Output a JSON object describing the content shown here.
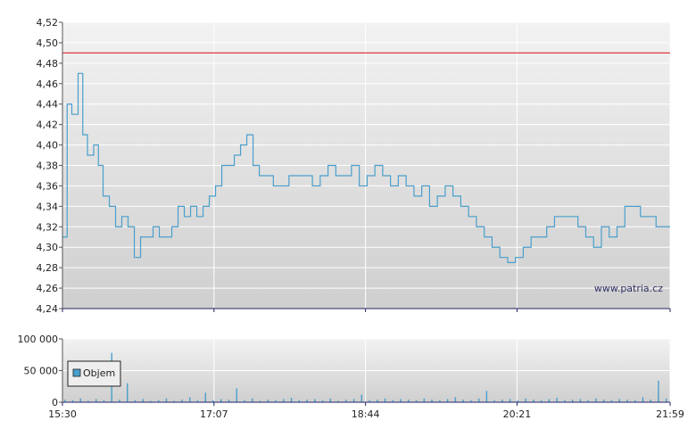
{
  "colors": {
    "price_line": "#4a9fcc",
    "reference_line": "#e03c3c",
    "volume_bar": "#4a9fcc",
    "grid": "#ffffff",
    "legend_swatch": "#4a9fcc"
  },
  "watermark": "www.patria.cz",
  "chart_data": [
    {
      "type": "line",
      "title": "",
      "xlabel": "",
      "ylabel": "",
      "x_ticks": [
        "15:30",
        "17:07",
        "18:44",
        "20:21",
        "21:59"
      ],
      "ylim": [
        4.24,
        4.52
      ],
      "y_ticks": [
        "4,52",
        "4,50",
        "4,48",
        "4,46",
        "4,44",
        "4,42",
        "4,40",
        "4,38",
        "4,36",
        "4,34",
        "4,32",
        "4,30",
        "4,28",
        "4,26",
        "4,24"
      ],
      "y_tick_values": [
        4.52,
        4.5,
        4.48,
        4.46,
        4.44,
        4.42,
        4.4,
        4.38,
        4.36,
        4.34,
        4.32,
        4.3,
        4.28,
        4.26,
        4.24
      ],
      "reference_level": 4.49,
      "grid": true,
      "series": [
        {
          "x": [
            "15:30",
            "15:33",
            "15:36",
            "15:40",
            "15:43",
            "15:46",
            "15:50",
            "15:53",
            "15:56",
            "16:00",
            "16:04",
            "16:08",
            "16:12",
            "16:16",
            "16:20",
            "16:24",
            "16:28",
            "16:32",
            "16:36",
            "16:40",
            "16:44",
            "16:48",
            "16:52",
            "16:56",
            "17:00",
            "17:04",
            "17:08",
            "17:12",
            "17:16",
            "17:20",
            "17:24",
            "17:28",
            "17:32",
            "17:36",
            "17:40",
            "17:45",
            "17:50",
            "17:55",
            "18:00",
            "18:05",
            "18:10",
            "18:15",
            "18:20",
            "18:25",
            "18:30",
            "18:35",
            "18:40",
            "18:45",
            "18:50",
            "18:55",
            "19:00",
            "19:05",
            "19:10",
            "19:15",
            "19:20",
            "19:25",
            "19:30",
            "19:35",
            "19:40",
            "19:45",
            "19:50",
            "19:55",
            "20:00",
            "20:05",
            "20:10",
            "20:15",
            "20:20",
            "20:25",
            "20:30",
            "20:35",
            "20:40",
            "20:45",
            "20:50",
            "20:55",
            "21:00",
            "21:05",
            "21:10",
            "21:15",
            "21:20",
            "21:25",
            "21:30",
            "21:35",
            "21:40",
            "21:45",
            "21:50",
            "21:55",
            "21:59"
          ],
          "y": [
            4.31,
            4.44,
            4.43,
            4.47,
            4.41,
            4.39,
            4.4,
            4.38,
            4.35,
            4.34,
            4.32,
            4.33,
            4.32,
            4.29,
            4.31,
            4.31,
            4.32,
            4.31,
            4.31,
            4.32,
            4.34,
            4.33,
            4.34,
            4.33,
            4.34,
            4.35,
            4.36,
            4.38,
            4.38,
            4.39,
            4.4,
            4.41,
            4.38,
            4.37,
            4.37,
            4.36,
            4.36,
            4.37,
            4.37,
            4.37,
            4.36,
            4.37,
            4.38,
            4.37,
            4.37,
            4.38,
            4.36,
            4.37,
            4.38,
            4.37,
            4.36,
            4.37,
            4.36,
            4.35,
            4.36,
            4.34,
            4.35,
            4.36,
            4.35,
            4.34,
            4.33,
            4.32,
            4.31,
            4.3,
            4.29,
            4.285,
            4.29,
            4.3,
            4.31,
            4.31,
            4.32,
            4.33,
            4.33,
            4.33,
            4.32,
            4.31,
            4.3,
            4.32,
            4.31,
            4.32,
            4.34,
            4.34,
            4.33,
            4.33,
            4.32,
            4.32,
            4.32
          ]
        }
      ]
    },
    {
      "type": "bar",
      "title": "",
      "xlabel": "",
      "ylabel": "",
      "x_ticks": [
        "15:30",
        "17:07",
        "18:44",
        "20:21",
        "21:59"
      ],
      "ylim": [
        0,
        100000
      ],
      "y_ticks": [
        "100 000",
        "50 000",
        "0"
      ],
      "y_tick_values": [
        100000,
        50000,
        0
      ],
      "legend": [
        "Objem"
      ],
      "legend_position": "left",
      "grid": true,
      "series": [
        {
          "name": "Objem",
          "x": [
            "15:30",
            "15:35",
            "15:40",
            "15:45",
            "15:50",
            "15:55",
            "16:00",
            "16:05",
            "16:10",
            "16:15",
            "16:20",
            "16:25",
            "16:30",
            "16:35",
            "16:40",
            "16:45",
            "16:50",
            "16:55",
            "17:00",
            "17:05",
            "17:10",
            "17:15",
            "17:20",
            "17:25",
            "17:30",
            "17:35",
            "17:40",
            "17:45",
            "17:50",
            "17:55",
            "18:00",
            "18:05",
            "18:10",
            "18:15",
            "18:20",
            "18:25",
            "18:30",
            "18:35",
            "18:40",
            "18:45",
            "18:50",
            "18:55",
            "19:00",
            "19:05",
            "19:10",
            "19:15",
            "19:20",
            "19:25",
            "19:30",
            "19:35",
            "19:40",
            "19:45",
            "19:50",
            "19:55",
            "20:00",
            "20:05",
            "20:10",
            "20:15",
            "20:20",
            "20:25",
            "20:30",
            "20:35",
            "20:40",
            "20:45",
            "20:50",
            "20:55",
            "21:00",
            "21:05",
            "21:10",
            "21:15",
            "21:20",
            "21:25",
            "21:30",
            "21:35",
            "21:40",
            "21:45",
            "21:50",
            "21:55"
          ],
          "values": [
            4000,
            3000,
            6000,
            2000,
            5000,
            3000,
            78000,
            4000,
            30000,
            3000,
            5000,
            2000,
            3000,
            6000,
            2000,
            4000,
            8000,
            3000,
            15000,
            3000,
            5000,
            4000,
            22000,
            3000,
            6000,
            2000,
            4000,
            3000,
            5000,
            7000,
            3000,
            4000,
            5000,
            3000,
            6000,
            2000,
            4000,
            5000,
            12000,
            3000,
            4000,
            6000,
            3000,
            5000,
            4000,
            3000,
            6000,
            4000,
            3000,
            5000,
            8000,
            4000,
            3000,
            6000,
            18000,
            3000,
            4000,
            5000,
            3000,
            6000,
            4000,
            3000,
            5000,
            7000,
            3000,
            4000,
            5000,
            3000,
            6000,
            4000,
            3000,
            5000,
            4000,
            3000,
            8000,
            4000,
            34000,
            6000
          ]
        }
      ]
    }
  ]
}
